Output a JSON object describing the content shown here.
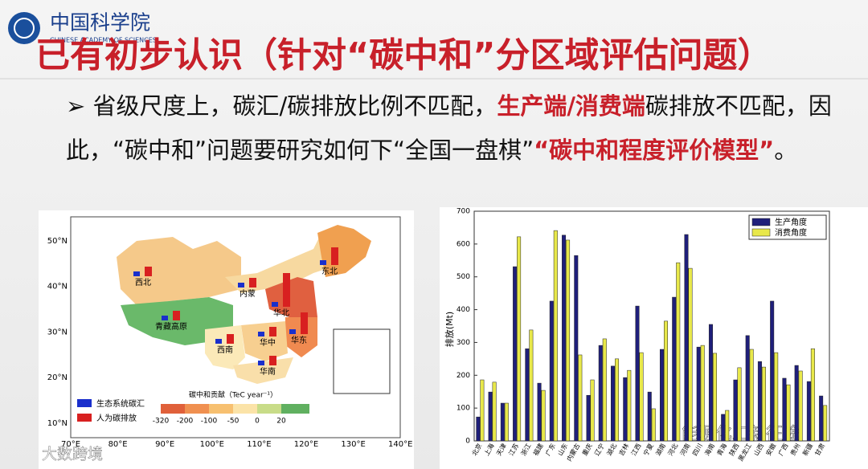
{
  "header": {
    "logo_cn": "中国科学院",
    "logo_en": "CHINESE ACADEMY OF SCIENCES",
    "title": "已有初步认识（针对“碳中和”分区域评估问题）"
  },
  "bullet": {
    "parts": [
      "省级尺度上，碳汇/碳排放比例不匹配，",
      "生产端/消费端",
      "碳排放不匹配，因此，“碳中和”问题要研究如何下“全国一盘棋”",
      "“碳中和程度评价模型”",
      "。"
    ]
  },
  "map": {
    "lat_labels": [
      "50°N",
      "40°N",
      "30°N",
      "20°N",
      "10°N"
    ],
    "lon_labels": [
      "70°E",
      "80°E",
      "90°E",
      "100°E",
      "110°E",
      "120°E",
      "130°E",
      "140°E"
    ],
    "regions": [
      "西北",
      "内蒙",
      "东北",
      "华北",
      "青藏高原",
      "西南",
      "华中",
      "华东",
      "华南"
    ],
    "legend": [
      "生态系统碳汇",
      "人为碳排放"
    ],
    "colorbar_title": "碳中和贡献（TeC year⁻¹）",
    "colorbar_ticks": [
      "-320",
      "-200",
      "-100",
      "-50",
      "0",
      "20"
    ]
  },
  "chart_data": {
    "type": "bar",
    "ylabel": "排放(Mt)",
    "categories": [
      "北京",
      "上海",
      "天津",
      "江苏",
      "浙江",
      "福建",
      "广东",
      "山东",
      "内蒙古",
      "重庆",
      "辽宁",
      "湖北",
      "吉林",
      "江西",
      "宁夏",
      "湖南",
      "河北",
      "河南",
      "四川",
      "海南",
      "青海",
      "陕西",
      "黑龙江",
      "山西",
      "安徽",
      "广西",
      "贵州",
      "新疆",
      "甘肃"
    ],
    "series": [
      {
        "name": "生产角度",
        "color": "#1f1f7a",
        "values": [
          73,
          149,
          115,
          531,
          281,
          176,
          426,
          627,
          565,
          139,
          291,
          228,
          193,
          411,
          149,
          279,
          438,
          629,
          286,
          355,
          81,
          186,
          321,
          242,
          426,
          191,
          230,
          181,
          137
        ]
      },
      {
        "name": "消费角度",
        "color": "#e8e84a",
        "values": [
          186,
          179,
          115,
          622,
          338,
          154,
          641,
          612,
          262,
          186,
          311,
          250,
          215,
          269,
          98,
          365,
          543,
          526,
          291,
          267,
          93,
          223,
          279,
          225,
          269,
          171,
          213,
          281,
          108
        ]
      }
    ],
    "ylim": [
      0,
      700
    ],
    "yticks": [
      0,
      100,
      200,
      300,
      400,
      500,
      600,
      700
    ],
    "legend": "top-right"
  },
  "watermarks": [
    "能源化工新征途",
    "大数跨境"
  ]
}
